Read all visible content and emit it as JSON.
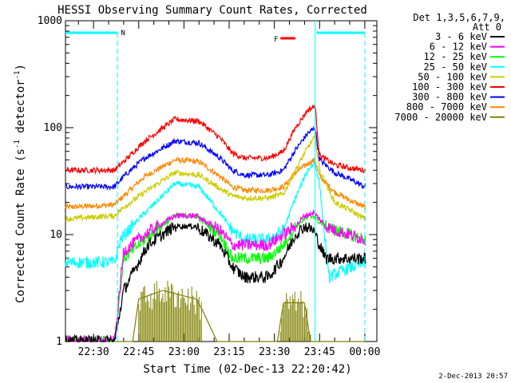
{
  "chart_data": {
    "type": "line",
    "title": "HESSI Observing Summary Count Rates, Corrected",
    "xlabel": "Start Time (02-Dec-13 22:20:42)",
    "ylabel_main": "Corrected Count Rate (s",
    "ylabel_mid": " detector",
    "ylabel_sup": "-1",
    "ylabel_end": ")",
    "yscale": "log",
    "ylim": [
      1,
      1000
    ],
    "yticks": [
      {
        "v": 1,
        "t": "1"
      },
      {
        "v": 10,
        "t": "10"
      },
      {
        "v": 100,
        "t": "100"
      },
      {
        "v": 1000,
        "t": "1000"
      }
    ],
    "xlim": [
      "22:20:42",
      "00:04:00"
    ],
    "xticks": [
      {
        "t": "22:30",
        "m": 570
      },
      {
        "t": "22:45",
        "m": 585
      },
      {
        "t": "23:00",
        "m": 600
      },
      {
        "t": "23:15",
        "m": 615
      },
      {
        "t": "23:30",
        "m": 630
      },
      {
        "t": "23:45",
        "m": 645
      },
      {
        "t": "00:00",
        "m": 660
      }
    ],
    "legend_header": [
      "Det 1,3,5,6,7,9,",
      "Att 0"
    ],
    "legend_position": "right",
    "series": [
      {
        "name": "3 - 6 keV",
        "color": "#000000",
        "x": [
          560.7,
          577,
          580,
          588,
          597,
          604,
          612,
          616,
          620,
          628,
          633,
          637,
          640,
          643,
          645,
          647,
          650,
          655,
          660
        ],
        "y": [
          1,
          1,
          3,
          8,
          12,
          12,
          8,
          5,
          4,
          4,
          6,
          10,
          12,
          11,
          8,
          6,
          6,
          6,
          6
        ]
      },
      {
        "name": "6 - 12 keV",
        "color": "#ff00ff",
        "x": [
          560.7,
          577,
          580,
          587,
          597,
          604,
          612,
          616,
          620,
          628,
          633,
          637,
          640,
          643,
          645,
          647,
          650,
          655,
          660
        ],
        "y": [
          1,
          1,
          7,
          10,
          15,
          15,
          11,
          8,
          8,
          8,
          10,
          12,
          15,
          16,
          14,
          12,
          11,
          10,
          9
        ]
      },
      {
        "name": "12 - 25 keV",
        "color": "#00ff00",
        "x": [
          560.7,
          577,
          580,
          587,
          597,
          604,
          612,
          616,
          620,
          628,
          633,
          637,
          640,
          643,
          645,
          647,
          650,
          655,
          660
        ],
        "y": [
          1,
          1,
          6,
          9,
          15,
          15,
          10,
          6,
          6,
          6,
          8,
          12,
          14,
          15,
          13,
          12,
          11,
          10,
          9
        ]
      },
      {
        "name": "25 - 50 keV",
        "color": "#00ffff",
        "x": [
          560.7,
          577,
          579,
          585,
          597,
          605,
          612,
          616,
          620,
          628,
          633,
          637,
          641,
          643.5,
          645,
          648,
          652,
          656,
          658,
          660
        ],
        "y": [
          5.5,
          5.5,
          9,
          14,
          30,
          28,
          16,
          11,
          9,
          9,
          11,
          22,
          40,
          47,
          30,
          4,
          4.5,
          5,
          5.2,
          5.5
        ]
      },
      {
        "name": "50 - 100 keV",
        "color": "#cccc00",
        "x": [
          560.7,
          577,
          580,
          587,
          597,
          605,
          612,
          616,
          620,
          628,
          633,
          637,
          641,
          643.5,
          645,
          650,
          655,
          660
        ],
        "y": [
          14,
          15,
          18,
          25,
          38,
          36,
          27,
          23,
          22,
          22,
          24,
          40,
          65,
          82,
          40,
          20,
          17,
          14
        ]
      },
      {
        "name": "100 - 300 keV",
        "color": "#ff0000",
        "x": [
          560.7,
          577,
          580,
          587,
          597,
          605,
          612,
          616,
          620,
          628,
          633,
          637,
          641,
          643.5,
          645,
          650,
          655,
          660
        ],
        "y": [
          40,
          40,
          48,
          75,
          120,
          115,
          80,
          58,
          52,
          52,
          60,
          100,
          145,
          160,
          55,
          45,
          42,
          40
        ]
      },
      {
        "name": "300 - 800 keV",
        "color": "#0000ff",
        "x": [
          560.7,
          577,
          580,
          587,
          597,
          605,
          612,
          616,
          620,
          628,
          633,
          637,
          641,
          643.5,
          645,
          650,
          655,
          660
        ],
        "y": [
          28,
          28,
          35,
          52,
          75,
          72,
          52,
          40,
          36,
          36,
          40,
          62,
          88,
          100,
          50,
          38,
          33,
          28
        ]
      },
      {
        "name": "800 - 7000 keV",
        "color": "#ff8800",
        "x": [
          560.7,
          577,
          580,
          587,
          597,
          605,
          612,
          616,
          620,
          628,
          633,
          637,
          641,
          643.5,
          645,
          650,
          655,
          660
        ],
        "y": [
          18,
          19,
          23,
          35,
          50,
          48,
          35,
          28,
          26,
          26,
          28,
          38,
          46,
          50,
          35,
          25,
          21,
          18
        ]
      },
      {
        "name": "7000 - 20000 keV",
        "color": "#808000",
        "x": [
          560.7,
          583,
          585,
          593,
          604,
          606,
          611,
          631,
          633,
          640,
          642,
          660
        ],
        "y": [
          1,
          1,
          2.5,
          3,
          2.5,
          2,
          1,
          1,
          2.3,
          2.3,
          1,
          1
        ]
      }
    ],
    "annotations": {
      "att_label": "N",
      "flare_label": "F",
      "att_color": "#00ffff",
      "flare_color": "#ff0000",
      "att_state_segments": [
        [
          560.7,
          578
        ],
        [
          644,
          660
        ]
      ],
      "att_dashed_x": [
        578,
        660
      ],
      "flare_bar_x": [
        632,
        637
      ],
      "vertical_solid_x": 643.5
    },
    "datestamp": "2-Dec-2013 20:57"
  }
}
